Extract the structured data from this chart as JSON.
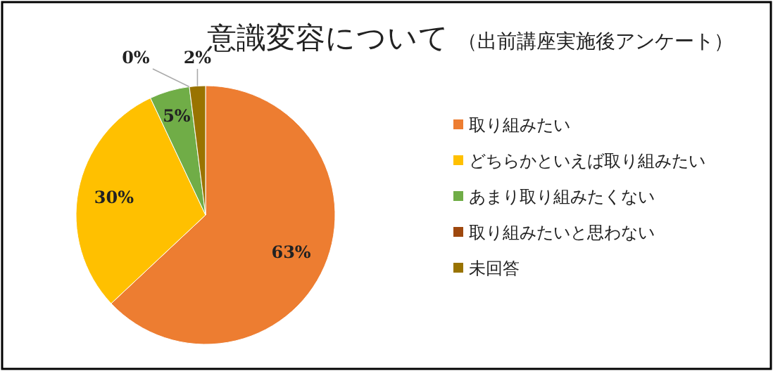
{
  "chart_data": {
    "type": "pie",
    "title": "意識変容について",
    "subtitle": "（出前講座実施後アンケート）",
    "categories": [
      "取り組みたい",
      "どちらかといえば取り組みたい",
      "あまり取り組みたくない",
      "取り組みたいと思わない",
      "未回答"
    ],
    "values": [
      63,
      30,
      5,
      0,
      2
    ],
    "colors": [
      "#ed7d31",
      "#ffc000",
      "#70ad47",
      "#9e480e",
      "#997300"
    ],
    "value_labels": [
      "63%",
      "30%",
      "5%",
      "0%",
      "2%"
    ],
    "legend": "right"
  }
}
